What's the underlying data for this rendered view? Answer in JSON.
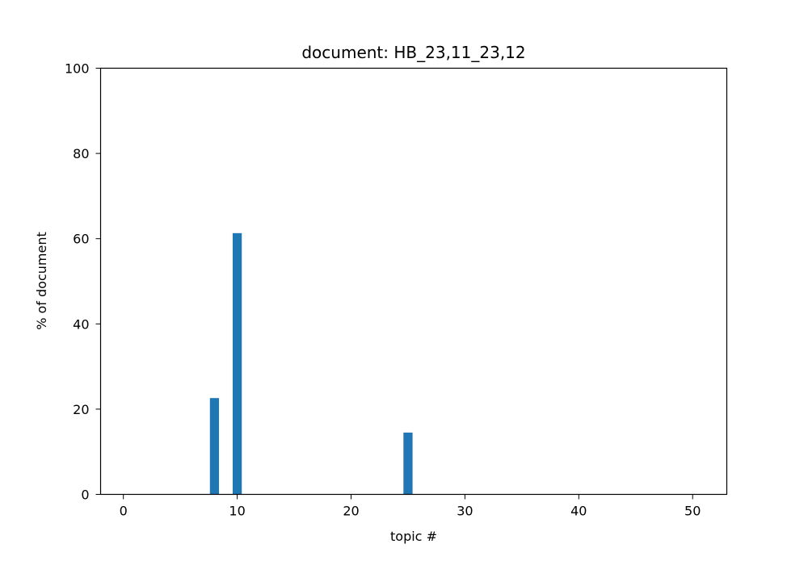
{
  "chart_data": {
    "type": "bar",
    "title": "document: HB_23,11_23,12",
    "xlabel": "topic #",
    "ylabel": "% of document",
    "xlim": [
      -2,
      53
    ],
    "ylim": [
      0,
      100
    ],
    "xticks": [
      0,
      10,
      20,
      30,
      40,
      50
    ],
    "yticks": [
      0,
      20,
      40,
      60,
      80,
      100
    ],
    "x": [
      0,
      1,
      2,
      3,
      4,
      5,
      6,
      7,
      8,
      9,
      10,
      11,
      12,
      13,
      14,
      15,
      16,
      17,
      18,
      19,
      20,
      21,
      22,
      23,
      24,
      25,
      26,
      27,
      28,
      29,
      30,
      31,
      32,
      33,
      34,
      35,
      36,
      37,
      38,
      39,
      40,
      41,
      42,
      43,
      44,
      45,
      46,
      47,
      48,
      49,
      50
    ],
    "values": [
      0,
      0,
      0,
      0,
      0,
      0,
      0,
      0,
      22.6,
      0,
      61.3,
      0,
      0,
      0,
      0,
      0,
      0,
      0,
      0,
      0,
      0,
      0,
      0,
      0,
      0,
      14.5,
      0,
      0,
      0,
      0,
      0,
      0,
      0,
      0,
      0,
      0,
      0,
      0,
      0,
      0,
      0,
      0,
      0,
      0,
      0,
      0,
      0,
      0,
      0,
      0,
      0
    ],
    "bar_width": 0.8,
    "bar_color": "#1f77b4",
    "grid": false
  }
}
